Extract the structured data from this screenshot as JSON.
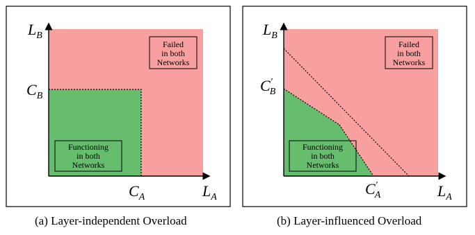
{
  "panel_a": {
    "y_axis_label": "L",
    "y_axis_sub": "B",
    "x_axis_label": "L",
    "x_axis_sub": "A",
    "y_tick": "C",
    "y_tick_sub": "B",
    "x_tick": "C",
    "x_tick_sub": "A",
    "failed_region": [
      "Failed",
      "in both",
      "Networks"
    ],
    "functioning_region": [
      "Functioning",
      "in both",
      "Networks"
    ],
    "caption": "(a) Layer-independent Overload",
    "colors": {
      "failed": "#f8a0a0",
      "functioning": "#66bd6e"
    }
  },
  "panel_b": {
    "y_axis_label": "L",
    "y_axis_sub": "B",
    "x_axis_label": "L",
    "x_axis_sub": "A",
    "y_tick": "C",
    "y_tick_prime": "′",
    "y_tick_sub": "B",
    "x_tick": "C",
    "x_tick_prime": "′",
    "x_tick_sub": "A",
    "failed_region": [
      "Failed",
      "in both",
      "Networks"
    ],
    "functioning_region": [
      "Functioning",
      "in both",
      "Networks"
    ],
    "caption": "(b) Layer-influenced Overload",
    "colors": {
      "failed": "#f8a0a0",
      "functioning": "#66bd6e"
    }
  }
}
